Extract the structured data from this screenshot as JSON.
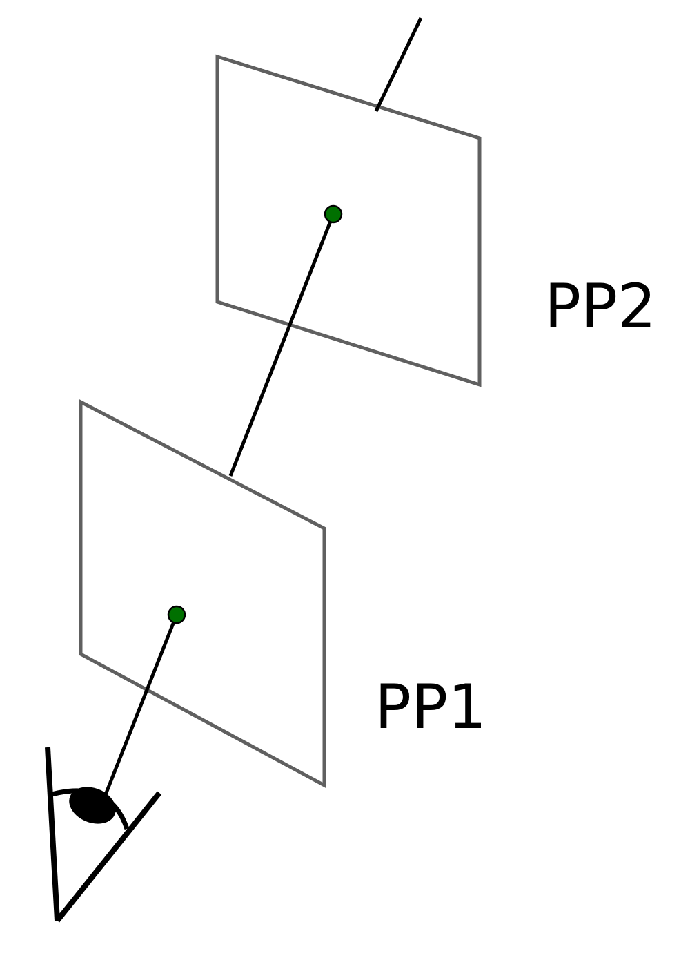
{
  "labels": {
    "plane_1": "PP1",
    "plane_2": "PP2"
  },
  "colors": {
    "plane_stroke": "#606060",
    "ray": "#000000",
    "point_fill": "#007000",
    "point_stroke": "#000000",
    "eye": "#000000",
    "label_text": "#000000"
  },
  "icons": {
    "viewer": "eye-icon"
  }
}
